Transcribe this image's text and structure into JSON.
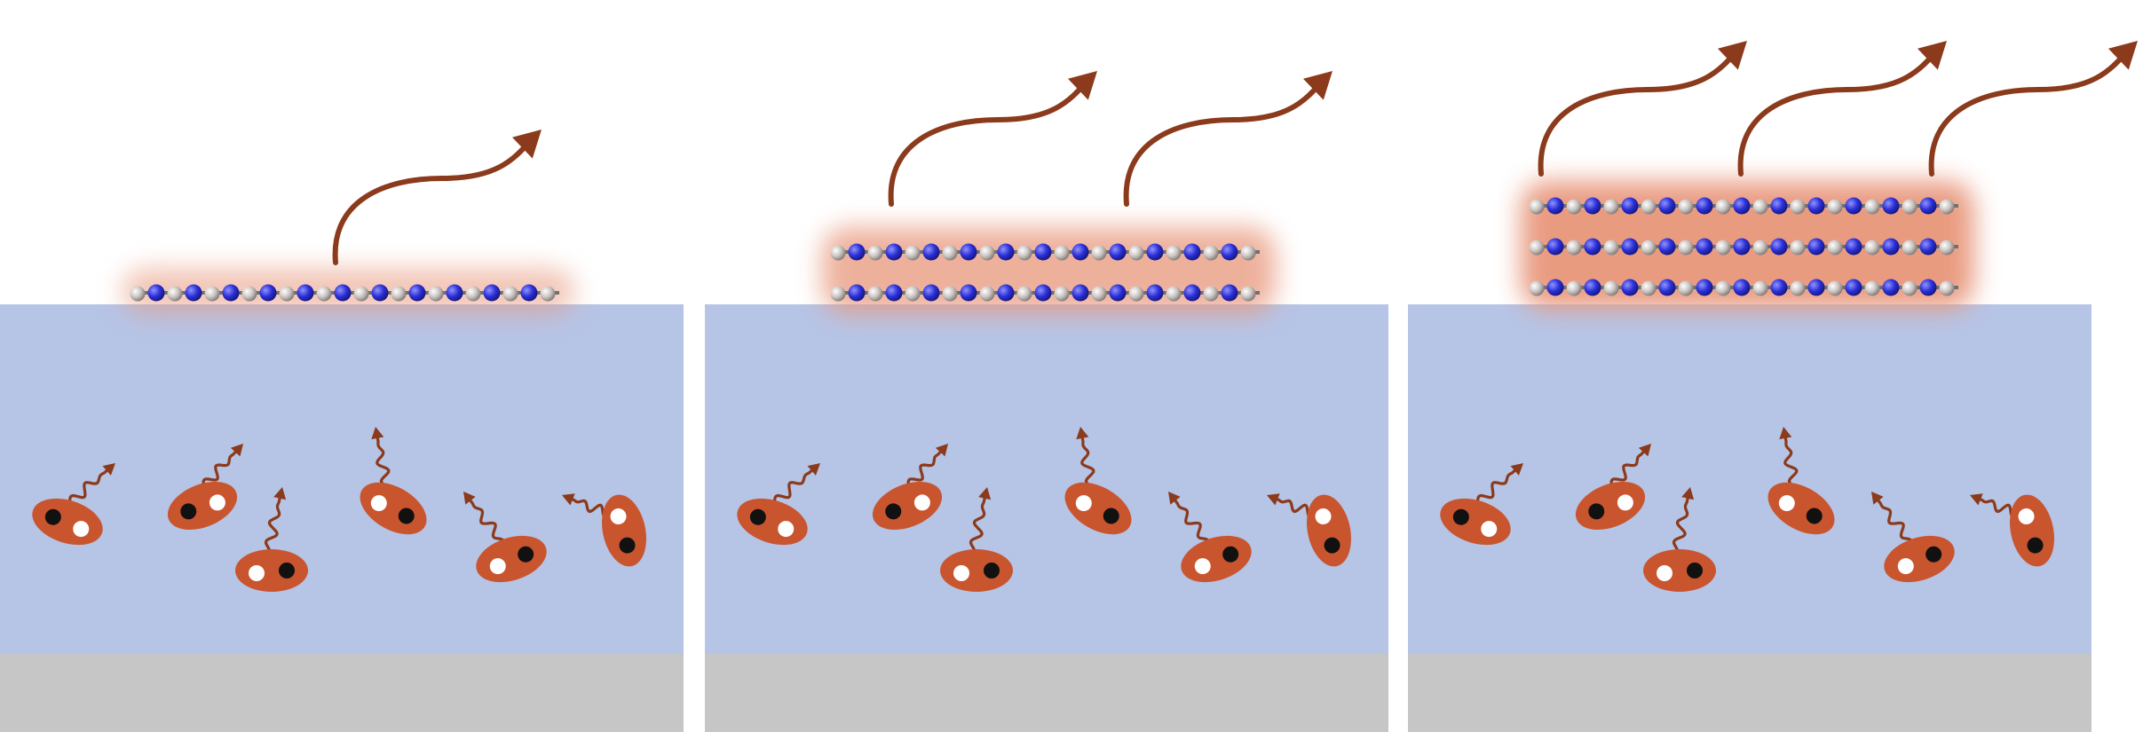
{
  "colors": {
    "background": "#ffffff",
    "liquid_region": "#b6c4e6",
    "substrate": "#c6c6c6",
    "dipole_body": "#c9552f",
    "dipole_black_dot": "#111111",
    "dipole_white_dot": "#ffffff",
    "wavy_arrow": "#8b3a1c",
    "emission_arrow": "#8b3a1c",
    "halo": "#e8967a",
    "atom_blue": "#2b2fd6",
    "atom_gray": "#b9b3b0",
    "bond": "#6f6f6f"
  },
  "panels": [
    {
      "name": "panel-1",
      "layers": 1,
      "emission_arrows": 1
    },
    {
      "name": "panel-2",
      "layers": 2,
      "emission_arrows": 2
    },
    {
      "name": "panel-3",
      "layers": 3,
      "emission_arrows": 3
    }
  ]
}
